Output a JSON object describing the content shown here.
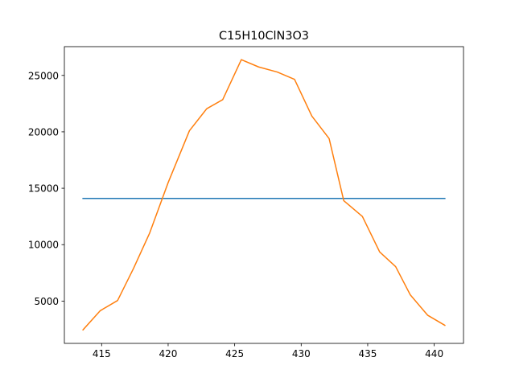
{
  "chart_data": {
    "type": "line",
    "title": "C15H10ClN3O3",
    "xlabel": "",
    "ylabel": "",
    "xlim": [
      412.2,
      442.2
    ],
    "ylim": [
      1250,
      27550
    ],
    "grid": false,
    "x_ticks": [
      415,
      420,
      425,
      430,
      435,
      440
    ],
    "y_ticks": [
      5000,
      10000,
      15000,
      20000,
      25000
    ],
    "series": [
      {
        "color": "#1f77b4",
        "x": [
          413.6,
          440.8
        ],
        "y": [
          14100,
          14100
        ]
      },
      {
        "color": "#ff7f0e",
        "x": [
          413.6,
          414.9,
          416.2,
          417.4,
          418.6,
          420.0,
          421.6,
          422.9,
          424.1,
          425.5,
          426.8,
          428.2,
          429.5,
          430.8,
          432.1,
          433.2,
          434.6,
          435.9,
          437.1,
          438.2,
          439.5,
          440.8
        ],
        "y": [
          2450,
          4150,
          5050,
          7900,
          11000,
          15500,
          20100,
          22050,
          22850,
          26400,
          25750,
          25300,
          24650,
          21400,
          19400,
          13900,
          12500,
          9350,
          8050,
          5550,
          3750,
          2850
        ]
      }
    ]
  }
}
